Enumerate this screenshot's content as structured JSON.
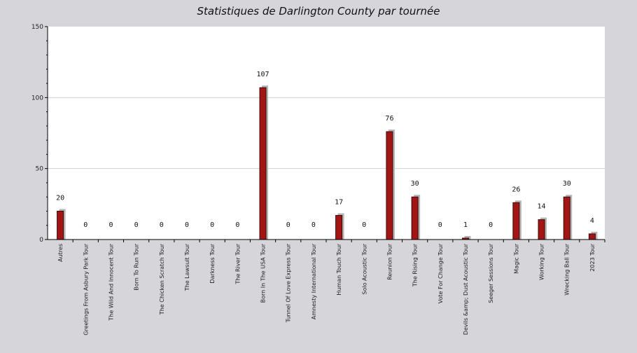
{
  "chart_data": {
    "type": "bar",
    "title": "Statistiques de Darlington County par tournée",
    "xlabel": "",
    "ylabel": "",
    "ylim": [
      0,
      150
    ],
    "yticks": [
      0,
      50,
      100,
      150
    ],
    "grid": true,
    "categories": [
      "Autres",
      "Greetings From Asbury Park Tour",
      "The Wild And Innocent Tour",
      "Born To Run Tour",
      "The Chicken Scratch Tour",
      "The Lawsuit Tour",
      "Darkness Tour",
      "The River Tour",
      "Born In The USA Tour",
      "Tunnel Of Love Express Tour",
      "Amnesty International Tour",
      "Human Touch Tour",
      "Solo Acoustic Tour",
      "Reunion Tour",
      "The Rising Tour",
      "Vote For Change Tour",
      "Devils &amp; Dust Acoustic Tour",
      "Seeger Sessions Tour",
      "Magic Tour",
      "Working Tour",
      "Wrecking Ball Tour",
      "2023 Tour"
    ],
    "values": [
      20,
      0,
      0,
      0,
      0,
      0,
      0,
      0,
      107,
      0,
      0,
      17,
      0,
      76,
      30,
      0,
      1,
      0,
      26,
      14,
      30,
      4
    ],
    "colors": {
      "bar": "#a31515",
      "bar_outline": "#3a0a0a",
      "shadow": "#b5b5b5",
      "plot_bg": "#ffffff",
      "page_bg": "#d6d5da",
      "grid": "#cfcfcf"
    }
  }
}
